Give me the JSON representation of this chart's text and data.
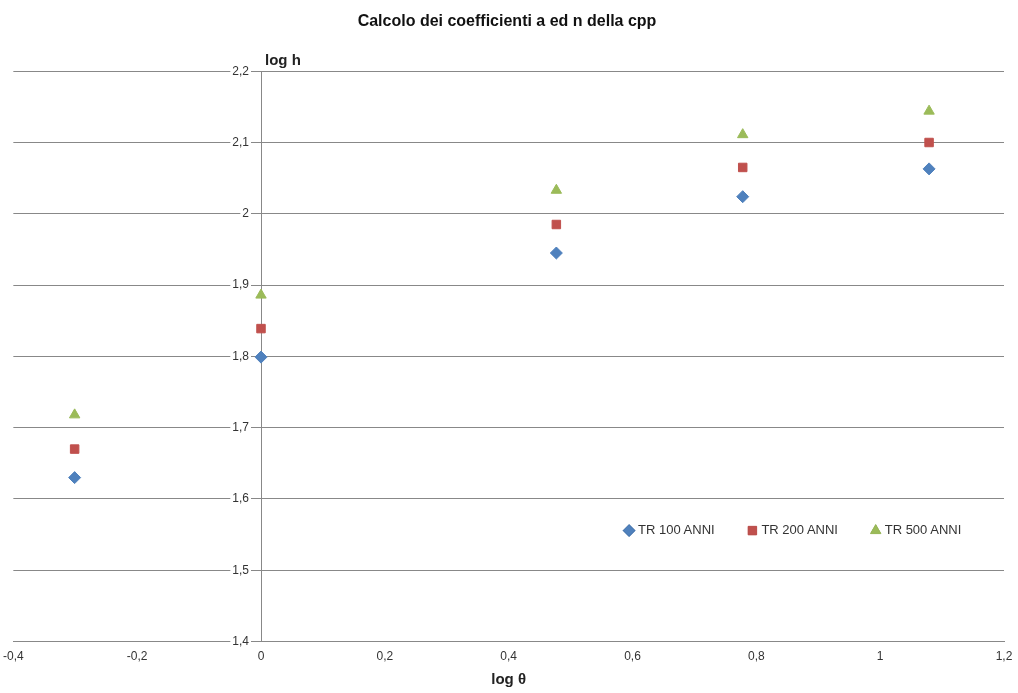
{
  "chart_data": {
    "type": "scatter",
    "title": "Calcolo dei coefficienti a ed n della cpp",
    "xlabel": "log θ",
    "ylabel": "log h",
    "x": [
      -0.301,
      0,
      0.477,
      0.778,
      1.079
    ],
    "series": [
      {
        "name": "TR 100 ANNI",
        "color": "#4f81bd",
        "marker": "diamond",
        "values": [
          1.63,
          1.799,
          1.945,
          2.024,
          2.063
        ]
      },
      {
        "name": "TR 200 ANNI",
        "color": "#c0504d",
        "marker": "square",
        "values": [
          1.67,
          1.839,
          1.985,
          2.065,
          2.1
        ]
      },
      {
        "name": "TR 500 ANNI",
        "color": "#9bbb59",
        "marker": "triangle",
        "values": [
          1.718,
          1.886,
          2.033,
          2.111,
          2.144
        ]
      }
    ],
    "xlim": [
      -0.4,
      1.2
    ],
    "xticks": [
      {
        "value": -0.4,
        "label": "-0,4"
      },
      {
        "value": -0.2,
        "label": "-0,2"
      },
      0,
      {
        "value": 0.2,
        "label": "0,2"
      },
      {
        "value": 0.4,
        "label": "0,4"
      },
      {
        "value": 0.6,
        "label": "0,6"
      },
      {
        "value": 0.8,
        "label": "0,8"
      },
      1,
      {
        "value": 1.2,
        "label": "1,2"
      }
    ],
    "ylim": [
      1.4,
      2.2
    ],
    "yticks": [
      {
        "value": 1.4,
        "label": "1,4"
      },
      {
        "value": 1.5,
        "label": "1,5"
      },
      {
        "value": 1.6,
        "label": "1,6"
      },
      {
        "value": 1.7,
        "label": "1,7"
      },
      {
        "value": 1.8,
        "label": "1,8"
      },
      {
        "value": 1.9,
        "label": "1,9"
      },
      2,
      {
        "value": 2.1,
        "label": "2,1"
      },
      {
        "value": 2.2,
        "label": "2,2"
      }
    ],
    "grid": "y",
    "legend": "bottom right"
  }
}
